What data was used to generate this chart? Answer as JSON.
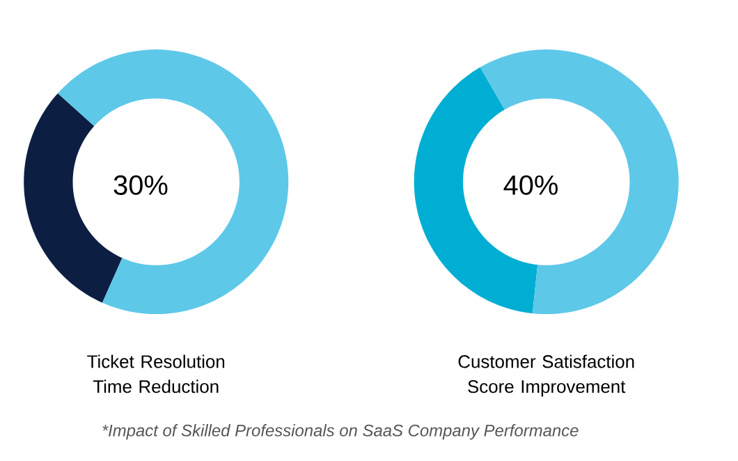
{
  "chart_data": [
    {
      "type": "donut",
      "title": "Ticket Resolution Time Reduction",
      "categories": [
        null,
        null
      ],
      "values": [
        30,
        70
      ],
      "colors": [
        "#0c1f42",
        "#5ec8e9"
      ],
      "value_labels": [
        "30%",
        null
      ]
    },
    {
      "type": "donut",
      "title": "Customer Satisfaction Score Improvement",
      "categories": [
        null,
        null
      ],
      "values": [
        40,
        60
      ],
      "colors": [
        "#00aed3",
        "#5ec8e9"
      ],
      "value_labels": [
        "40%",
        null
      ],
      "annotations": [
        "*Impact of Skilled Professionals on SaaS Company Performance"
      ]
    }
  ]
}
